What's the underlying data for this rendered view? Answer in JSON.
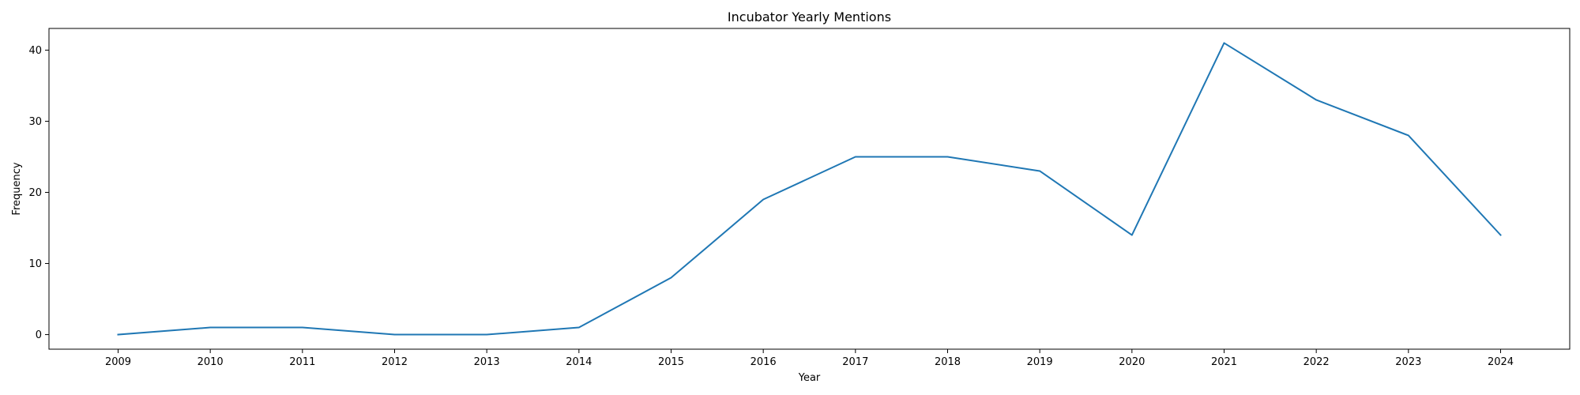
{
  "chart_data": {
    "type": "line",
    "title": "Incubator Yearly Mentions",
    "xlabel": "Year",
    "ylabel": "Frequency",
    "x": [
      "2009",
      "2010",
      "2011",
      "2012",
      "2013",
      "2014",
      "2015",
      "2016",
      "2017",
      "2018",
      "2019",
      "2020",
      "2021",
      "2022",
      "2023",
      "2024"
    ],
    "series": [
      {
        "values": [
          0,
          1,
          1,
          0,
          0,
          1,
          8,
          19,
          25,
          25,
          23,
          14,
          41,
          33,
          28,
          14
        ],
        "color": "#1f77b4"
      }
    ],
    "yticks": [
      0,
      10,
      20,
      30,
      40
    ],
    "ylim": [
      -2.05,
      43.05
    ],
    "grid": false,
    "legend": "none"
  }
}
